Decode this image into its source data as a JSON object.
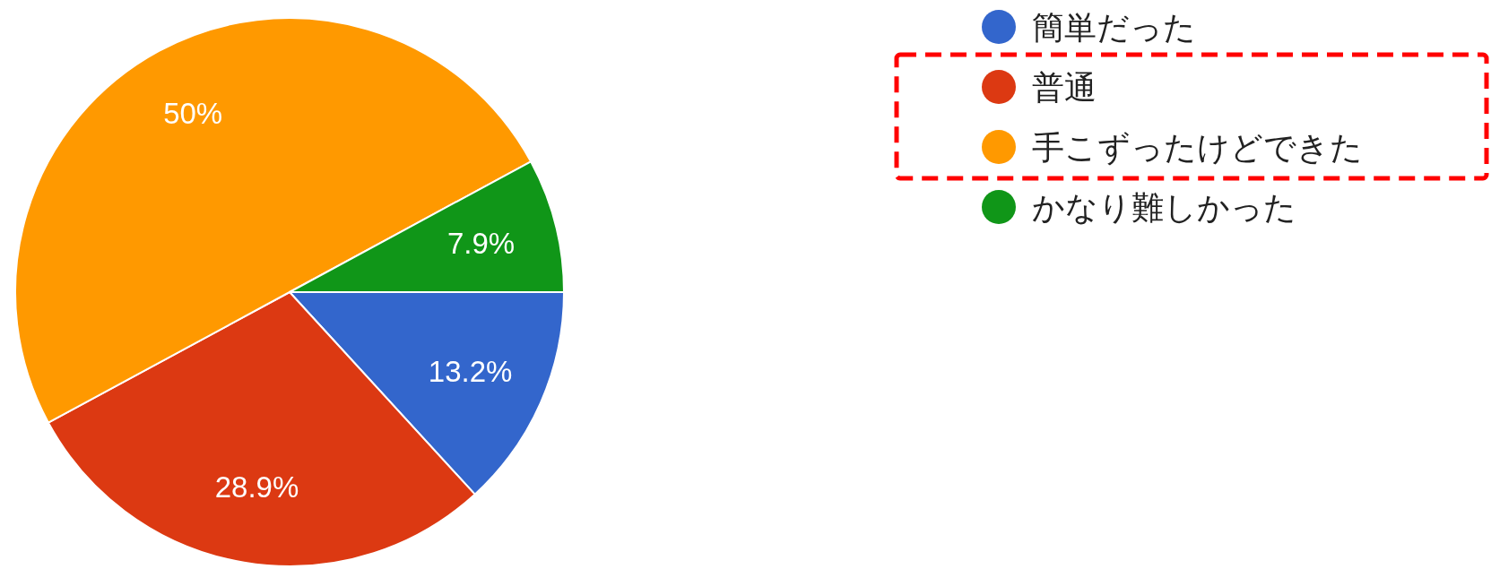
{
  "chart_data": {
    "type": "pie",
    "categories": [
      "簡単だった",
      "普通",
      "手こずったけどできた",
      "かなり難しかった"
    ],
    "values": [
      13.2,
      28.9,
      50,
      7.9
    ],
    "value_labels": [
      "13.2%",
      "28.9%",
      "50%",
      "7.9%"
    ],
    "colors": [
      "#3366cc",
      "#dc3912",
      "#ff9900",
      "#109618"
    ],
    "legend": "top right"
  }
}
